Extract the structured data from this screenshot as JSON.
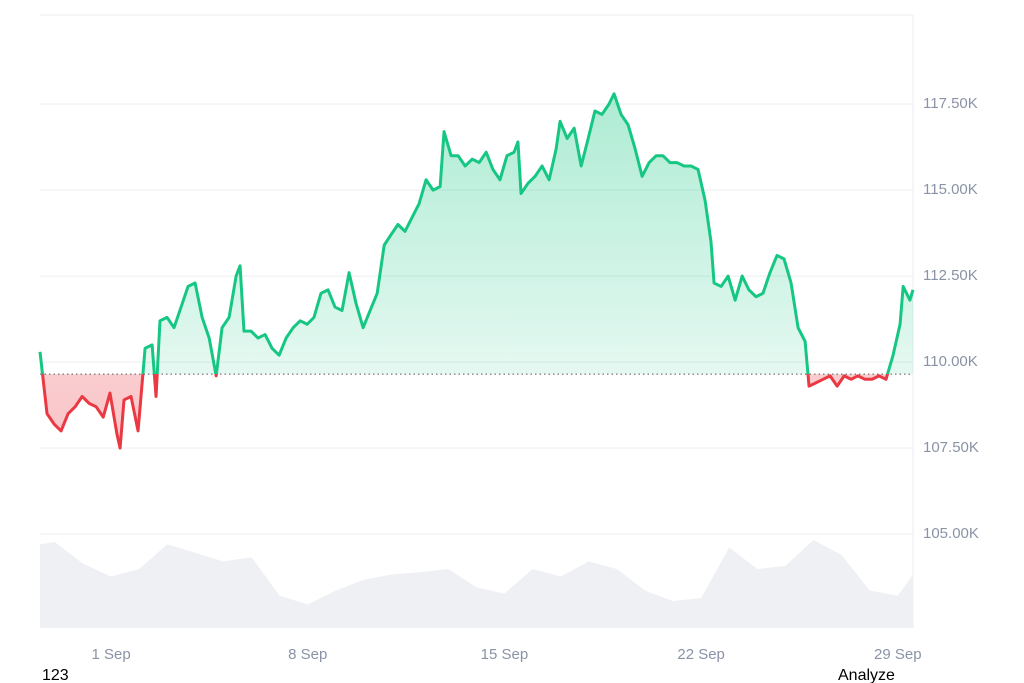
{
  "chart_data": {
    "type": "line",
    "x": [
      -1.53,
      -1.28,
      -1.03,
      -0.78,
      -0.53,
      -0.28,
      -0.03,
      0.22,
      0.47,
      0.72,
      0.96,
      1.21,
      1.32,
      1.46,
      1.71,
      1.96,
      2.21,
      2.46,
      2.6,
      2.74,
      2.99,
      3.24,
      3.49,
      3.74,
      3.99,
      4.24,
      4.49,
      4.74,
      4.95,
      5.2,
      5.45,
      5.59,
      5.73,
      5.98,
      6.23,
      6.48,
      6.73,
      6.98,
      7.23,
      7.48,
      7.73,
      7.98,
      8.22,
      8.47,
      8.72,
      8.97,
      9.22,
      9.47,
      9.72,
      9.97,
      10.22,
      10.47,
      10.72,
      10.96,
      11.21,
      11.46,
      11.71,
      11.96,
      12.21,
      12.46,
      12.71,
      12.85,
      13.1,
      13.35,
      13.6,
      13.85,
      14.1,
      14.35,
      14.59,
      14.84,
      15.09,
      15.34,
      15.48,
      15.59,
      15.84,
      16.09,
      16.34,
      16.59,
      16.84,
      16.98,
      17.23,
      17.48,
      17.73,
      17.98,
      18.22,
      18.47,
      18.72,
      18.9,
      19.15,
      19.4,
      19.65,
      19.9,
      20.15,
      20.4,
      20.64,
      20.89,
      21.14,
      21.39,
      21.64,
      21.89,
      22.14,
      22.35,
      22.46,
      22.71,
      22.96,
      23.21,
      23.46,
      23.7,
      23.95,
      24.2,
      24.45,
      24.7,
      24.95,
      25.2,
      25.45,
      25.7,
      25.84,
      26.09,
      26.34,
      26.59,
      26.84,
      27.09,
      27.34,
      27.58,
      27.83,
      28.08,
      28.33,
      28.58,
      28.83,
      29.08,
      29.19,
      29.43,
      29.54
    ],
    "values": [
      110300,
      108500,
      108200,
      108000,
      108500,
      108700,
      109000,
      108800,
      108700,
      108400,
      109100,
      107900,
      107500,
      108900,
      109000,
      108000,
      110400,
      110500,
      109000,
      111200,
      111300,
      111000,
      111600,
      112200,
      112300,
      111300,
      110700,
      109600,
      111000,
      111300,
      112500,
      112800,
      110900,
      110900,
      110700,
      110800,
      110400,
      110200,
      110700,
      111000,
      111200,
      111100,
      111300,
      112000,
      112100,
      111600,
      111500,
      112600,
      111700,
      111000,
      111500,
      112000,
      113400,
      113700,
      114000,
      113800,
      114200,
      114600,
      115300,
      115000,
      115100,
      116700,
      116000,
      116000,
      115700,
      115900,
      115800,
      116100,
      115600,
      115300,
      116000,
      116100,
      116400,
      114900,
      115200,
      115400,
      115700,
      115300,
      116200,
      117000,
      116500,
      116800,
      115700,
      116500,
      117300,
      117200,
      117500,
      117800,
      117200,
      116900,
      116200,
      115400,
      115800,
      116000,
      116000,
      115800,
      115800,
      115700,
      115700,
      115600,
      114700,
      113500,
      112300,
      112200,
      112500,
      111800,
      112500,
      112100,
      111900,
      112000,
      112600,
      113100,
      113000,
      112300,
      111000,
      110600,
      109300,
      109400,
      109500,
      109600,
      109300,
      109600,
      109500,
      109600,
      109500,
      109500,
      109600,
      109500,
      110200,
      111100,
      112200,
      111800,
      112100
    ],
    "baseline": 109650,
    "color_up": "#16c784",
    "color_down": "#ea3943",
    "volume": {
      "x": [
        -1.53,
        -1,
        0,
        1,
        2,
        3,
        4,
        5,
        6,
        7,
        8,
        9,
        10,
        11,
        12,
        13,
        14,
        15,
        16,
        17,
        18,
        19,
        20,
        21,
        22,
        23,
        24,
        25,
        26,
        27,
        28,
        29,
        29.54
      ],
      "values": [
        78,
        80,
        60,
        48,
        55,
        78,
        70,
        62,
        66,
        30,
        22,
        35,
        45,
        50,
        52,
        55,
        38,
        32,
        55,
        48,
        62,
        55,
        35,
        25,
        28,
        75,
        55,
        58,
        82,
        68,
        35,
        30,
        50
      ],
      "color": "#eef0f3"
    },
    "xlim": [
      -1.53,
      29.54
    ],
    "xticks": [
      {
        "value": 1,
        "label": "1 Sep"
      },
      {
        "value": 8,
        "label": "8 Sep"
      },
      {
        "value": 15,
        "label": "15 Sep"
      },
      {
        "value": 22,
        "label": "22 Sep"
      },
      {
        "value": 29,
        "label": "29 Sep"
      }
    ],
    "ylim": [
      102270,
      120090
    ],
    "yticks": [
      {
        "value": 105000,
        "label": "105.00K"
      },
      {
        "value": 107500,
        "label": "107.50K"
      },
      {
        "value": 110000,
        "label": "110.00K"
      },
      {
        "value": 112500,
        "label": "112.50K"
      },
      {
        "value": 115000,
        "label": "115.00K"
      },
      {
        "value": 117500,
        "label": "117.50K"
      }
    ],
    "grid": true
  },
  "footer": {
    "left": "123",
    "right": "Analyze"
  }
}
